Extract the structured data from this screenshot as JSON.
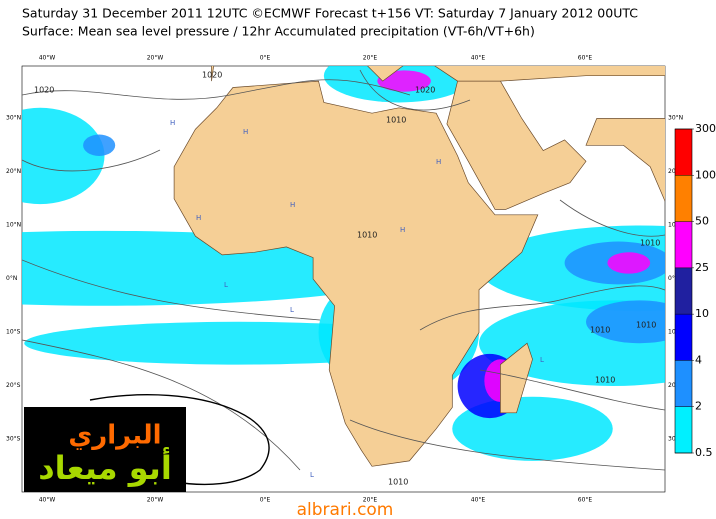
{
  "header": {
    "line1": "Saturday 31 December 2011 12UTC ©ECMWF Forecast t+156 VT: Saturday 7 January 2012 00UTC",
    "line2": "Surface: Mean sea level pressure / 12hr Accumulated precipitation (VT-6h/VT+6h)"
  },
  "map": {
    "longitude_labels": [
      "40°W",
      "20°W",
      "0°E",
      "20°E",
      "40°E",
      "60°E"
    ],
    "latitude_labels": [
      "30°N",
      "20°N",
      "10°N",
      "0°N",
      "10°S",
      "20°S",
      "30°S"
    ],
    "isobar_labels": [
      "1020",
      "1020",
      "1010",
      "1010",
      "1010",
      "1010",
      "1010",
      "1020",
      "1010",
      "1010"
    ],
    "centre_markers": [
      "H",
      "H",
      "H",
      "H",
      "L",
      "L",
      "L",
      "H",
      "L",
      "H"
    ]
  },
  "colorbar": {
    "levels": [
      0.5,
      2,
      4,
      10,
      25,
      50,
      100,
      300
    ],
    "colors": [
      "#00f0ff",
      "#1e90ff",
      "#0000ff",
      "#2020a0",
      "#ff00ff",
      "#ff8000",
      "#ff0000"
    ]
  },
  "logo": {
    "line1": "البراري",
    "line2": "أبو ميعاد"
  },
  "watermark": "albrari.com"
}
